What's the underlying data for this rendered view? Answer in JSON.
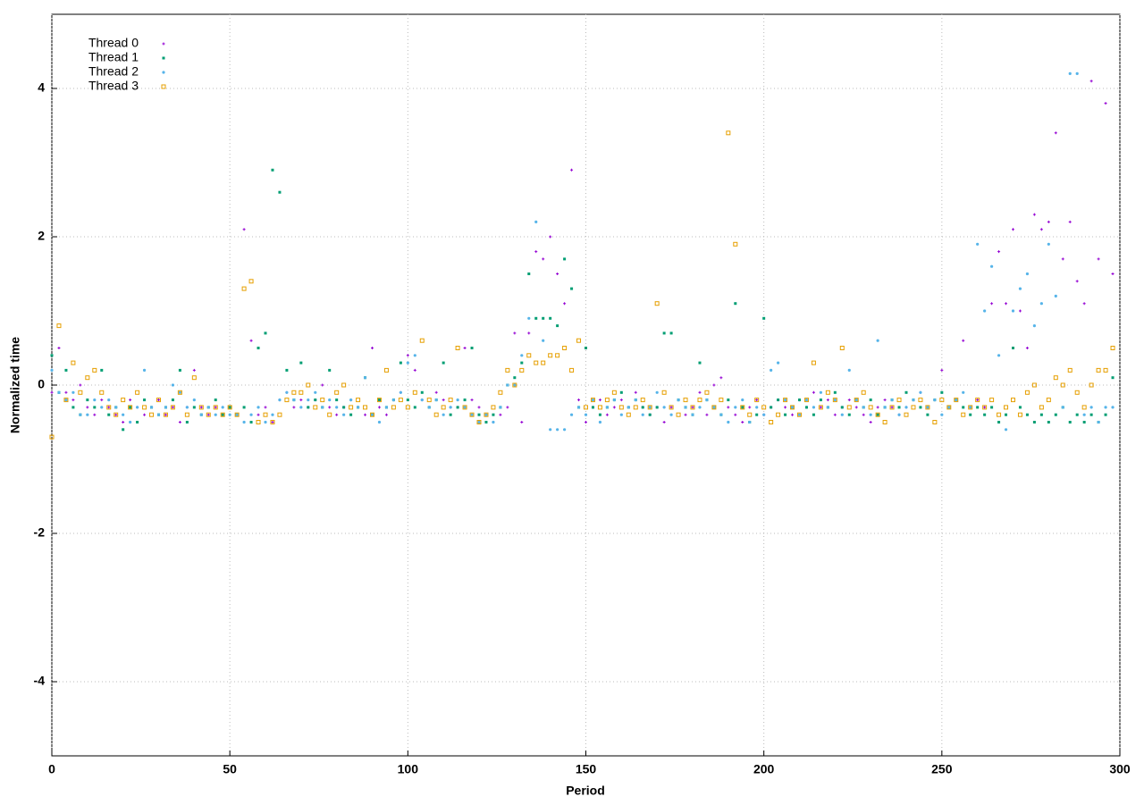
{
  "chart_data": {
    "type": "scatter",
    "x_label": "Period",
    "y_label": "Normalized time",
    "xlim": [
      0,
      300
    ],
    "ylim": [
      -5,
      5
    ],
    "xticks": [
      0,
      50,
      100,
      150,
      200,
      250,
      300
    ],
    "yticks": [
      -4,
      -2,
      0,
      2,
      4
    ],
    "grid": true,
    "legend": "top-left",
    "x": [
      0,
      2,
      4,
      6,
      8,
      10,
      12,
      14,
      16,
      18,
      20,
      22,
      24,
      26,
      28,
      30,
      32,
      34,
      36,
      38,
      40,
      42,
      44,
      46,
      48,
      50,
      52,
      54,
      56,
      58,
      60,
      62,
      64,
      66,
      68,
      70,
      72,
      74,
      76,
      78,
      80,
      82,
      84,
      86,
      88,
      90,
      92,
      94,
      96,
      98,
      100,
      102,
      104,
      106,
      108,
      110,
      112,
      114,
      116,
      118,
      120,
      122,
      124,
      126,
      128,
      130,
      132,
      134,
      136,
      138,
      140,
      142,
      144,
      146,
      148,
      150,
      152,
      154,
      156,
      158,
      160,
      162,
      164,
      166,
      168,
      170,
      172,
      174,
      176,
      178,
      180,
      182,
      184,
      186,
      188,
      190,
      192,
      194,
      196,
      198,
      200,
      202,
      204,
      206,
      208,
      210,
      212,
      214,
      216,
      218,
      220,
      222,
      224,
      226,
      228,
      230,
      232,
      234,
      236,
      238,
      240,
      242,
      244,
      246,
      248,
      250,
      252,
      254,
      256,
      258,
      260,
      262,
      264,
      266,
      268,
      270,
      272,
      274,
      276,
      278,
      280,
      282,
      284,
      286,
      288,
      290,
      292,
      294,
      296,
      298
    ],
    "series": [
      {
        "name": "Thread 0",
        "color": "#9400d3",
        "values": [
          -0.1,
          0.5,
          -0.1,
          -0.2,
          0.0,
          -0.3,
          -0.4,
          -0.2,
          -0.3,
          -0.4,
          -0.5,
          -0.2,
          -0.3,
          -0.4,
          -0.3,
          -0.2,
          -0.4,
          -0.3,
          -0.5,
          -0.3,
          0.2,
          -0.3,
          -0.4,
          -0.3,
          -0.4,
          -0.3,
          -0.4,
          2.1,
          0.6,
          -0.4,
          -0.3,
          -0.5,
          -0.2,
          -0.1,
          -0.3,
          -0.2,
          -0.3,
          -0.2,
          0.0,
          -0.3,
          -0.4,
          -0.3,
          -0.2,
          -0.3,
          -0.4,
          0.5,
          -0.3,
          -0.4,
          -0.2,
          -0.1,
          0.4,
          0.2,
          -0.2,
          -0.3,
          -0.1,
          -0.2,
          -0.3,
          -0.3,
          0.5,
          -0.2,
          -0.3,
          -0.4,
          -0.5,
          -0.4,
          -0.3,
          0.7,
          -0.5,
          0.7,
          1.8,
          1.7,
          2.0,
          1.5,
          1.1,
          2.9,
          -0.2,
          -0.5,
          -0.3,
          -0.2,
          -0.4,
          -0.3,
          -0.2,
          -0.3,
          -0.1,
          -0.3,
          -0.4,
          -0.3,
          -0.5,
          -0.3,
          -0.2,
          -0.4,
          -0.3,
          -0.1,
          -0.4,
          0.0,
          0.1,
          -0.3,
          -0.4,
          -0.5,
          -0.3,
          -0.2,
          -0.4,
          -0.3,
          -0.2,
          -0.3,
          -0.4,
          -0.2,
          -0.3,
          -0.1,
          -0.3,
          -0.2,
          -0.4,
          -0.3,
          -0.2,
          -0.3,
          -0.4,
          -0.5,
          -0.3,
          -0.2,
          -0.3,
          -0.4,
          -0.3,
          -0.2,
          -0.1,
          -0.3,
          -0.2,
          0.2,
          -0.3,
          -0.2,
          0.6,
          -0.3,
          -0.2,
          -0.3,
          1.1,
          1.8,
          1.1,
          2.1,
          1.0,
          0.5,
          2.3,
          2.1,
          2.2,
          3.4,
          1.7,
          2.2,
          1.4,
          1.1,
          4.1,
          1.7,
          3.8,
          1.5
        ]
      },
      {
        "name": "Thread 1",
        "color": "#009e73",
        "values": [
          0.4,
          -0.1,
          0.2,
          -0.3,
          -0.4,
          -0.2,
          -0.3,
          0.2,
          -0.4,
          -0.3,
          -0.6,
          -0.3,
          -0.5,
          -0.2,
          -0.3,
          -0.4,
          -0.3,
          -0.2,
          0.2,
          -0.5,
          -0.3,
          -0.4,
          -0.3,
          -0.2,
          -0.4,
          -0.3,
          -0.4,
          -0.3,
          -0.5,
          0.5,
          0.7,
          2.9,
          2.6,
          0.2,
          -0.2,
          0.3,
          -0.3,
          -0.2,
          -0.3,
          0.2,
          -0.2,
          -0.3,
          -0.4,
          -0.3,
          0.1,
          -0.4,
          -0.2,
          -0.3,
          -0.2,
          0.3,
          -0.2,
          -0.3,
          -0.1,
          -0.3,
          -0.2,
          0.3,
          -0.4,
          -0.3,
          -0.2,
          0.5,
          -0.4,
          -0.5,
          -0.4,
          -0.3,
          0.0,
          0.1,
          0.3,
          1.5,
          0.9,
          0.9,
          0.9,
          0.8,
          1.7,
          1.3,
          -0.3,
          0.5,
          -0.3,
          -0.4,
          -0.3,
          -0.2,
          -0.1,
          -0.3,
          -0.2,
          -0.3,
          -0.4,
          -0.3,
          0.7,
          0.7,
          -0.2,
          -0.3,
          -0.4,
          0.3,
          -0.2,
          -0.3,
          -0.4,
          -0.2,
          1.1,
          -0.3,
          -0.5,
          -0.4,
          0.9,
          -0.3,
          -0.2,
          -0.4,
          -0.3,
          -0.2,
          -0.3,
          -0.4,
          -0.2,
          -0.3,
          -0.1,
          -0.3,
          -0.4,
          -0.2,
          -0.3,
          -0.2,
          -0.4,
          -0.3,
          -0.2,
          -0.3,
          -0.1,
          -0.2,
          -0.3,
          -0.4,
          -0.2,
          -0.1,
          -0.3,
          -0.2,
          -0.3,
          -0.4,
          -0.3,
          -0.4,
          -0.3,
          -0.5,
          -0.4,
          0.5,
          -0.3,
          -0.4,
          -0.5,
          -0.4,
          -0.5,
          -0.4,
          -0.3,
          -0.5,
          -0.4,
          -0.5,
          -0.4,
          -0.5,
          -0.4,
          0.1
        ]
      },
      {
        "name": "Thread 2",
        "color": "#56b4e9",
        "values": [
          0.2,
          -0.1,
          -0.2,
          -0.1,
          -0.4,
          -0.4,
          -0.2,
          -0.3,
          -0.2,
          -0.3,
          -0.4,
          -0.5,
          -0.3,
          0.2,
          -0.3,
          -0.4,
          -0.3,
          0.0,
          -0.1,
          -0.3,
          -0.2,
          -0.4,
          -0.3,
          -0.4,
          -0.3,
          -0.4,
          -0.4,
          -0.5,
          -0.4,
          -0.3,
          -0.5,
          -0.4,
          -0.2,
          -0.1,
          -0.2,
          -0.3,
          -0.2,
          -0.1,
          -0.3,
          -0.2,
          -0.3,
          -0.4,
          -0.2,
          -0.3,
          0.1,
          -0.4,
          -0.5,
          -0.3,
          -0.2,
          -0.1,
          0.3,
          0.4,
          -0.2,
          -0.3,
          -0.2,
          -0.4,
          -0.3,
          -0.2,
          -0.3,
          -0.4,
          -0.5,
          -0.4,
          -0.5,
          -0.3,
          0.0,
          0.0,
          0.4,
          0.9,
          2.2,
          0.6,
          -0.6,
          -0.6,
          -0.6,
          -0.4,
          -0.3,
          -0.4,
          -0.2,
          -0.5,
          -0.3,
          -0.2,
          -0.4,
          -0.3,
          -0.2,
          -0.4,
          -0.3,
          -0.1,
          -0.3,
          -0.4,
          -0.2,
          -0.3,
          -0.4,
          -0.3,
          -0.2,
          -0.3,
          -0.4,
          -0.5,
          -0.3,
          -0.2,
          -0.5,
          -0.3,
          -0.4,
          0.2,
          0.3,
          -0.2,
          -0.3,
          -0.4,
          -0.2,
          -0.3,
          -0.1,
          -0.3,
          -0.2,
          -0.4,
          0.2,
          -0.2,
          -0.3,
          -0.4,
          0.6,
          -0.3,
          -0.2,
          -0.4,
          -0.3,
          -0.2,
          -0.1,
          -0.3,
          -0.2,
          -0.4,
          -0.3,
          -0.2,
          -0.1,
          -0.3,
          1.9,
          1.0,
          1.6,
          0.4,
          -0.6,
          1.0,
          1.3,
          1.5,
          0.8,
          1.1,
          1.9,
          1.2,
          -0.3,
          4.2,
          4.2,
          -0.4,
          -0.3,
          -0.5,
          -0.3,
          -0.3
        ]
      },
      {
        "name": "Thread 3",
        "color": "#e69f00",
        "values": [
          -0.7,
          0.8,
          -0.2,
          0.3,
          -0.1,
          0.1,
          0.2,
          -0.1,
          -0.3,
          -0.4,
          -0.2,
          -0.3,
          -0.1,
          -0.3,
          -0.4,
          -0.2,
          -0.4,
          -0.3,
          -0.1,
          -0.4,
          0.1,
          -0.3,
          -0.4,
          -0.3,
          -0.4,
          -0.3,
          -0.4,
          1.3,
          1.4,
          -0.5,
          -0.4,
          -0.5,
          -0.4,
          -0.2,
          -0.1,
          -0.1,
          0.0,
          -0.3,
          -0.2,
          -0.4,
          -0.1,
          0.0,
          -0.3,
          -0.2,
          -0.3,
          -0.4,
          -0.2,
          0.2,
          -0.3,
          -0.2,
          -0.3,
          -0.1,
          0.6,
          -0.2,
          -0.4,
          -0.3,
          -0.2,
          0.5,
          -0.3,
          -0.4,
          -0.5,
          -0.4,
          -0.3,
          -0.1,
          0.2,
          0.0,
          0.2,
          0.4,
          0.3,
          0.3,
          0.4,
          0.4,
          0.5,
          0.2,
          0.6,
          -0.3,
          -0.2,
          -0.3,
          -0.2,
          -0.1,
          -0.3,
          -0.4,
          -0.3,
          -0.2,
          -0.3,
          1.1,
          -0.1,
          -0.3,
          -0.4,
          -0.2,
          -0.3,
          -0.2,
          -0.1,
          -0.3,
          -0.2,
          3.4,
          1.9,
          -0.3,
          -0.4,
          -0.2,
          -0.3,
          -0.5,
          -0.4,
          -0.2,
          -0.3,
          -0.4,
          -0.2,
          0.3,
          -0.3,
          -0.1,
          -0.2,
          0.5,
          -0.3,
          -0.2,
          -0.1,
          -0.3,
          -0.4,
          -0.5,
          -0.3,
          -0.2,
          -0.4,
          -0.3,
          -0.2,
          -0.3,
          -0.5,
          -0.2,
          -0.3,
          -0.2,
          -0.4,
          -0.3,
          -0.2,
          -0.3,
          -0.2,
          -0.4,
          -0.3,
          -0.2,
          -0.4,
          -0.1,
          0.0,
          -0.3,
          -0.2,
          0.1,
          0.0,
          0.2,
          -0.1,
          -0.3,
          0.0,
          0.2,
          0.2,
          0.5
        ]
      }
    ]
  }
}
